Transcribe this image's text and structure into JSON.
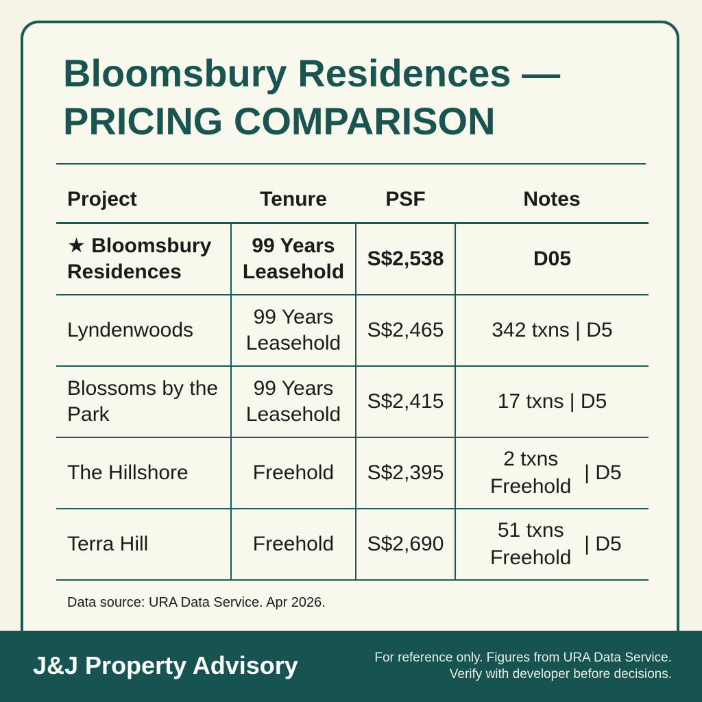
{
  "header": {
    "title": [
      "Bloomsbury Residences —",
      "PRICING COMPARISON"
    ]
  },
  "table": {
    "columns": [
      "Project",
      "Tenure",
      "PSF",
      "Notes"
    ],
    "rows": [
      [
        "★ Bloomsbury Residences",
        "99 Years Leasehold",
        "S$2,538",
        "D05"
      ],
      [
        "Lyndenwoods",
        "99 Years Leasehold",
        "S$2,465",
        "342 txns | D5"
      ],
      [
        "Blossoms by the Park",
        "99 Years Leasehold",
        "S$2,415",
        "17 txns | D5"
      ],
      [
        "The Hillshore",
        "Freehold",
        "S$2,395",
        {
          "text": "2 txns Freehold",
          "tag": "| D5"
        }
      ],
      [
        "Terra Hill",
        "Freehold",
        "S$2,690",
        {
          "text": "51 txns Freehold",
          "tag": "| D5"
        }
      ]
    ]
  },
  "source": "Data source: URA Data Service. Apr 2026.",
  "footer": {
    "brand": "J&J Property Advisory",
    "disclaimer": [
      "For reference only. Figures from URA Data Service.",
      "Verify with developer before decisions."
    ]
  }
}
